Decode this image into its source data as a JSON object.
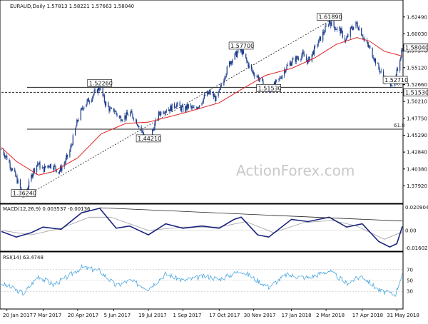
{
  "chart_data": [
    {
      "type": "candlestick",
      "panel": "price",
      "header": "EURAUD,Daily  1.57813 1.58221 1.57663 1.58040",
      "watermark": "ActionForex.com",
      "last_price_label": "1.58040",
      "ylim": [
        1.3548,
        1.6475
      ],
      "yticks": [
        "1.62490",
        "1.60030",
        "1.57570",
        "1.55120",
        "1.52660",
        "1.50210",
        "1.47750",
        "1.45290",
        "1.42840",
        "1.40380",
        "1.37920"
      ],
      "xticks": [
        "20 Jan 2017",
        "7 Mar 2017",
        "20 Apr 2017",
        "5 Jun 2017",
        "19 Jul 2017",
        "1 Sep 2017",
        "17 Oct 2017",
        "30 Nov 2017",
        "17 Jan 2018",
        "2 Mar 2018",
        "17 Apr 2018",
        "31 May 2018"
      ],
      "x_domain": [
        "2017-01-13",
        "2018-06-07"
      ],
      "close_path": [
        [
          "2017-01-13",
          1.432
        ],
        [
          "2017-01-20",
          1.42
        ],
        [
          "2017-01-26",
          1.405
        ],
        [
          "2017-02-01",
          1.39
        ],
        [
          "2017-02-06",
          1.376
        ],
        [
          "2017-02-10",
          1.3624
        ],
        [
          "2017-02-17",
          1.382
        ],
        [
          "2017-02-22",
          1.4
        ],
        [
          "2017-02-28",
          1.412
        ],
        [
          "2017-03-07",
          1.403
        ],
        [
          "2017-03-14",
          1.41
        ],
        [
          "2017-03-20",
          1.408
        ],
        [
          "2017-03-27",
          1.4
        ],
        [
          "2017-04-03",
          1.412
        ],
        [
          "2017-04-10",
          1.43
        ],
        [
          "2017-04-20",
          1.475
        ],
        [
          "2017-04-27",
          1.495
        ],
        [
          "2017-05-05",
          1.505
        ],
        [
          "2017-05-12",
          1.515
        ],
        [
          "2017-05-18",
          1.5226
        ],
        [
          "2017-05-25",
          1.5
        ],
        [
          "2017-06-01",
          1.488
        ],
        [
          "2017-06-05",
          1.49
        ],
        [
          "2017-06-12",
          1.478
        ],
        [
          "2017-06-19",
          1.48
        ],
        [
          "2017-06-26",
          1.485
        ],
        [
          "2017-07-03",
          1.475
        ],
        [
          "2017-07-10",
          1.46
        ],
        [
          "2017-07-17",
          1.445
        ],
        [
          "2017-07-19",
          1.4421
        ],
        [
          "2017-07-26",
          1.465
        ],
        [
          "2017-08-02",
          1.485
        ],
        [
          "2017-08-09",
          1.49
        ],
        [
          "2017-08-16",
          1.492
        ],
        [
          "2017-08-23",
          1.498
        ],
        [
          "2017-09-01",
          1.49
        ],
        [
          "2017-09-08",
          1.495
        ],
        [
          "2017-09-15",
          1.49
        ],
        [
          "2017-09-22",
          1.498
        ],
        [
          "2017-09-29",
          1.51
        ],
        [
          "2017-10-06",
          1.515
        ],
        [
          "2017-10-13",
          1.505
        ],
        [
          "2017-10-17",
          1.515
        ],
        [
          "2017-10-24",
          1.54
        ],
        [
          "2017-10-31",
          1.56
        ],
        [
          "2017-11-07",
          1.57
        ],
        [
          "2017-11-14",
          1.577
        ],
        [
          "2017-11-21",
          1.56
        ],
        [
          "2017-11-28",
          1.545
        ],
        [
          "2017-12-05",
          1.538
        ],
        [
          "2017-12-12",
          1.525
        ],
        [
          "2017-12-19",
          1.5153
        ],
        [
          "2017-12-26",
          1.525
        ],
        [
          "2018-01-02",
          1.535
        ],
        [
          "2018-01-09",
          1.55
        ],
        [
          "2018-01-17",
          1.56
        ],
        [
          "2018-01-24",
          1.565
        ],
        [
          "2018-01-31",
          1.57
        ],
        [
          "2018-02-07",
          1.56
        ],
        [
          "2018-02-14",
          1.575
        ],
        [
          "2018-02-21",
          1.59
        ],
        [
          "2018-02-28",
          1.605
        ],
        [
          "2018-03-06",
          1.6189
        ],
        [
          "2018-03-13",
          1.61
        ],
        [
          "2018-03-20",
          1.605
        ],
        [
          "2018-03-27",
          1.59
        ],
        [
          "2018-04-03",
          1.608
        ],
        [
          "2018-04-10",
          1.615
        ],
        [
          "2018-04-17",
          1.6
        ],
        [
          "2018-04-20",
          1.59
        ],
        [
          "2018-04-26",
          1.58
        ],
        [
          "2018-05-01",
          1.568
        ],
        [
          "2018-05-08",
          1.55
        ],
        [
          "2018-05-15",
          1.535
        ],
        [
          "2018-05-22",
          1.53
        ],
        [
          "2018-05-29",
          1.5271
        ],
        [
          "2018-05-31",
          1.545
        ],
        [
          "2018-06-04",
          1.565
        ],
        [
          "2018-06-07",
          1.5804
        ]
      ],
      "sma_path": [
        [
          "2017-01-13",
          1.435
        ],
        [
          "2017-02-01",
          1.415
        ],
        [
          "2017-03-01",
          1.395
        ],
        [
          "2017-03-20",
          1.4
        ],
        [
          "2017-04-20",
          1.42
        ],
        [
          "2017-05-20",
          1.455
        ],
        [
          "2017-06-20",
          1.47
        ],
        [
          "2017-07-19",
          1.472
        ],
        [
          "2017-09-01",
          1.485
        ],
        [
          "2017-10-17",
          1.5
        ],
        [
          "2017-11-15",
          1.52
        ],
        [
          "2017-12-15",
          1.54
        ],
        [
          "2018-01-17",
          1.55
        ],
        [
          "2018-02-15",
          1.565
        ],
        [
          "2018-03-15",
          1.585
        ],
        [
          "2018-04-10",
          1.595
        ],
        [
          "2018-04-26",
          1.59
        ],
        [
          "2018-05-15",
          1.575
        ],
        [
          "2018-06-07",
          1.568
        ]
      ],
      "price_labels": [
        {
          "date": "2017-02-10",
          "price": 1.3624,
          "text": "1.36240"
        },
        {
          "date": "2017-05-18",
          "price": 1.5226,
          "text": "1.52260"
        },
        {
          "date": "2017-07-19",
          "price": 1.4421,
          "text": "1.44210"
        },
        {
          "date": "2017-11-14",
          "price": 1.577,
          "text": "1.57700"
        },
        {
          "date": "2017-12-19",
          "price": 1.5153,
          "text": "1.51530"
        },
        {
          "date": "2018-03-06",
          "price": 1.6189,
          "text": "1.61890"
        },
        {
          "date": "2018-05-29",
          "price": 1.5271,
          "text": "1.52710"
        }
      ],
      "horizontal_levels": [
        {
          "price": 1.5153,
          "text": "1.51530",
          "style": "dashed"
        },
        {
          "price": 1.5226,
          "text": "",
          "style": "solid"
        },
        {
          "price": 1.4617,
          "text": "",
          "style": "solid"
        }
      ],
      "fib_labels": [
        {
          "text": "38.2",
          "price": 1.5226
        },
        {
          "text": "61.8",
          "price": 1.4617
        }
      ],
      "trendline": [
        [
          "2017-02-10",
          1.3624
        ],
        [
          "2018-03-06",
          1.6189
        ]
      ],
      "colors": {
        "candle": "#1a3a8a",
        "sma": "#e02020",
        "levels": "#222222"
      }
    },
    {
      "type": "line",
      "panel": "macd",
      "header": "MACD(12,26,9) 0.003537 -0.00136",
      "ylim": [
        -0.0175,
        0.0225
      ],
      "yticks": [
        "0.020904",
        "0.00",
        "-0.016023"
      ],
      "macd_path": [
        [
          "2017-01-13",
          -0.001
        ],
        [
          "2017-02-01",
          -0.006
        ],
        [
          "2017-02-20",
          -0.002
        ],
        [
          "2017-03-07",
          0.003
        ],
        [
          "2017-03-30",
          0.001
        ],
        [
          "2017-04-25",
          0.016
        ],
        [
          "2017-05-18",
          0.02
        ],
        [
          "2017-06-08",
          0.002
        ],
        [
          "2017-06-25",
          0.004
        ],
        [
          "2017-07-19",
          -0.004
        ],
        [
          "2017-08-10",
          0.006
        ],
        [
          "2017-09-01",
          0.002
        ],
        [
          "2017-09-25",
          0.004
        ],
        [
          "2017-10-17",
          0.002
        ],
        [
          "2017-11-05",
          0.01
        ],
        [
          "2017-11-14",
          0.012
        ],
        [
          "2017-12-05",
          -0.004
        ],
        [
          "2017-12-19",
          -0.006
        ],
        [
          "2018-01-17",
          0.01
        ],
        [
          "2018-02-07",
          0.008
        ],
        [
          "2018-03-06",
          0.012
        ],
        [
          "2018-03-28",
          0.003
        ],
        [
          "2018-04-17",
          0.006
        ],
        [
          "2018-05-08",
          -0.01
        ],
        [
          "2018-05-22",
          -0.015
        ],
        [
          "2018-05-31",
          -0.012
        ],
        [
          "2018-06-07",
          0.003537
        ]
      ],
      "signal_path": [
        [
          "2017-01-13",
          0.0
        ],
        [
          "2017-02-20",
          -0.004
        ],
        [
          "2017-03-30",
          0.002
        ],
        [
          "2017-05-05",
          0.012
        ],
        [
          "2017-06-01",
          0.012
        ],
        [
          "2017-07-19",
          0.0
        ],
        [
          "2017-09-01",
          0.003
        ],
        [
          "2017-10-17",
          0.003
        ],
        [
          "2017-11-20",
          0.008
        ],
        [
          "2017-12-25",
          -0.002
        ],
        [
          "2018-02-01",
          0.007
        ],
        [
          "2018-03-10",
          0.009
        ],
        [
          "2018-04-10",
          0.004
        ],
        [
          "2018-05-15",
          -0.008
        ],
        [
          "2018-06-07",
          -0.00136
        ]
      ],
      "trendline": [
        [
          "2017-05-18",
          0.0205
        ],
        [
          "2018-06-07",
          0.0085
        ]
      ],
      "colors": {
        "macd": "#1a237e",
        "signal": "#9e9e9e",
        "grid": "#dddddd"
      }
    },
    {
      "type": "line",
      "panel": "rsi",
      "header": "RSI(14) 63.4748",
      "ylim": [
        0,
        100
      ],
      "yticks": [
        "70",
        "50",
        "30"
      ],
      "rsi_path": [
        [
          "2017-01-13",
          45
        ],
        [
          "2017-02-10",
          26
        ],
        [
          "2017-03-01",
          58
        ],
        [
          "2017-03-20",
          42
        ],
        [
          "2017-04-05",
          55
        ],
        [
          "2017-04-25",
          74
        ],
        [
          "2017-05-18",
          68
        ],
        [
          "2017-06-08",
          40
        ],
        [
          "2017-06-25",
          50
        ],
        [
          "2017-07-19",
          35
        ],
        [
          "2017-08-10",
          62
        ],
        [
          "2017-09-01",
          50
        ],
        [
          "2017-10-01",
          58
        ],
        [
          "2017-10-17",
          52
        ],
        [
          "2017-11-14",
          68
        ],
        [
          "2017-12-19",
          38
        ],
        [
          "2018-01-10",
          60
        ],
        [
          "2018-02-07",
          55
        ],
        [
          "2018-03-06",
          68
        ],
        [
          "2018-03-28",
          45
        ],
        [
          "2018-04-17",
          58
        ],
        [
          "2018-05-10",
          30
        ],
        [
          "2018-05-29",
          24
        ],
        [
          "2018-06-07",
          63.4748
        ]
      ],
      "colors": {
        "rsi": "#4fa8e0",
        "levels": "#bbbbbb"
      }
    }
  ]
}
